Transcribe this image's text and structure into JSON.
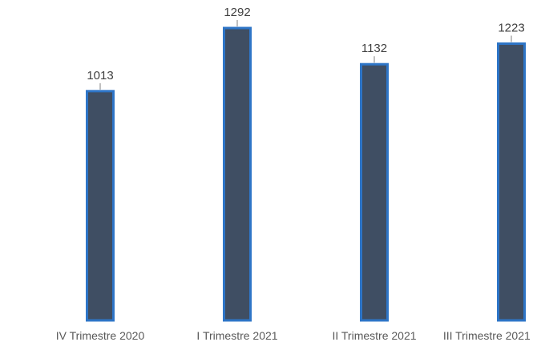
{
  "chart_data": {
    "type": "bar",
    "categories": [
      "IV Trimestre 2020",
      "I Trimestre 2021",
      "II Trimestre 2021",
      "III Trimestre 2021"
    ],
    "values": [
      1013,
      1292,
      1132,
      1223
    ],
    "color": "#3f4e63",
    "edge_color": "#2e75c7"
  }
}
